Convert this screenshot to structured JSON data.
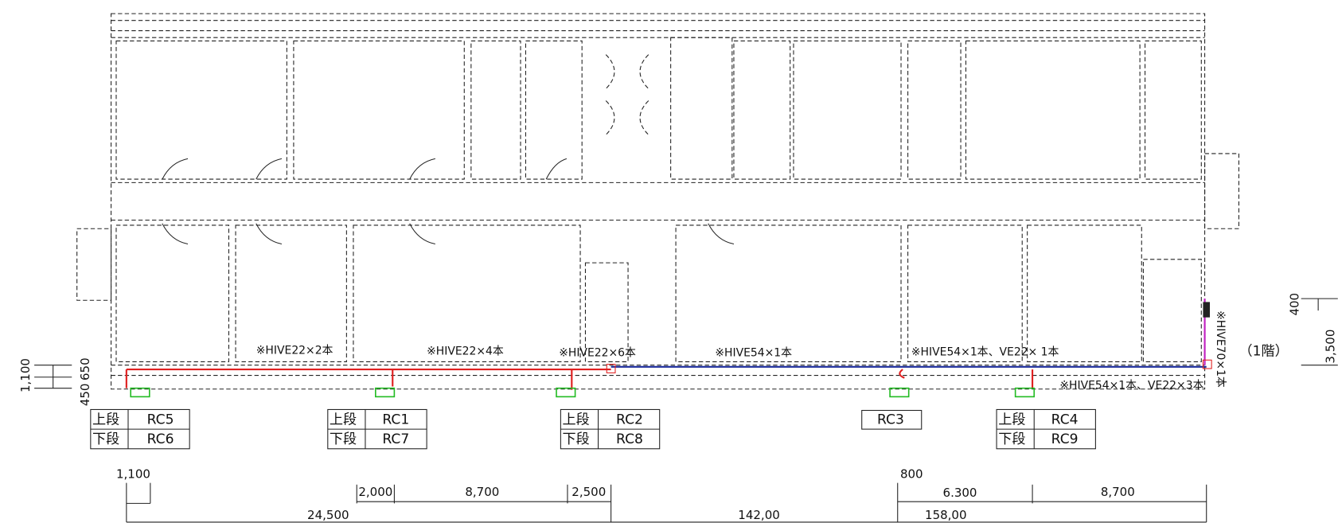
{
  "notes": [
    "※HIVE22×2本",
    "※HIVE22×4本",
    "※HIVE22×6本",
    "※HIVE54×1本",
    "※HIVE54×1本、VE22× 1本",
    "※HIVE54×1本、VE22×3本",
    "※HIVE70×1本"
  ],
  "floor": "（1階）",
  "labels": [
    {
      "rows": [
        [
          "上段",
          "RC5"
        ],
        [
          "下段",
          "RC6"
        ]
      ]
    },
    {
      "rows": [
        [
          "上段",
          "RC1"
        ],
        [
          "下段",
          "RC7"
        ]
      ]
    },
    {
      "rows": [
        [
          "上段",
          "RC2"
        ],
        [
          "下段",
          "RC8"
        ]
      ]
    },
    {
      "rows": [
        [
          "RC3"
        ]
      ]
    },
    {
      "rows": [
        [
          "上段",
          "RC4"
        ],
        [
          "下段",
          "RC9"
        ]
      ]
    }
  ],
  "dimensions": {
    "bottom": [
      "1,100",
      "2,000",
      "8,700",
      "2,500",
      "800",
      "6.300",
      "8,700",
      "24,500",
      "142,00",
      "158,00"
    ],
    "left": [
      "1,100",
      "450",
      "650"
    ],
    "right": [
      "400",
      "3,500"
    ]
  }
}
